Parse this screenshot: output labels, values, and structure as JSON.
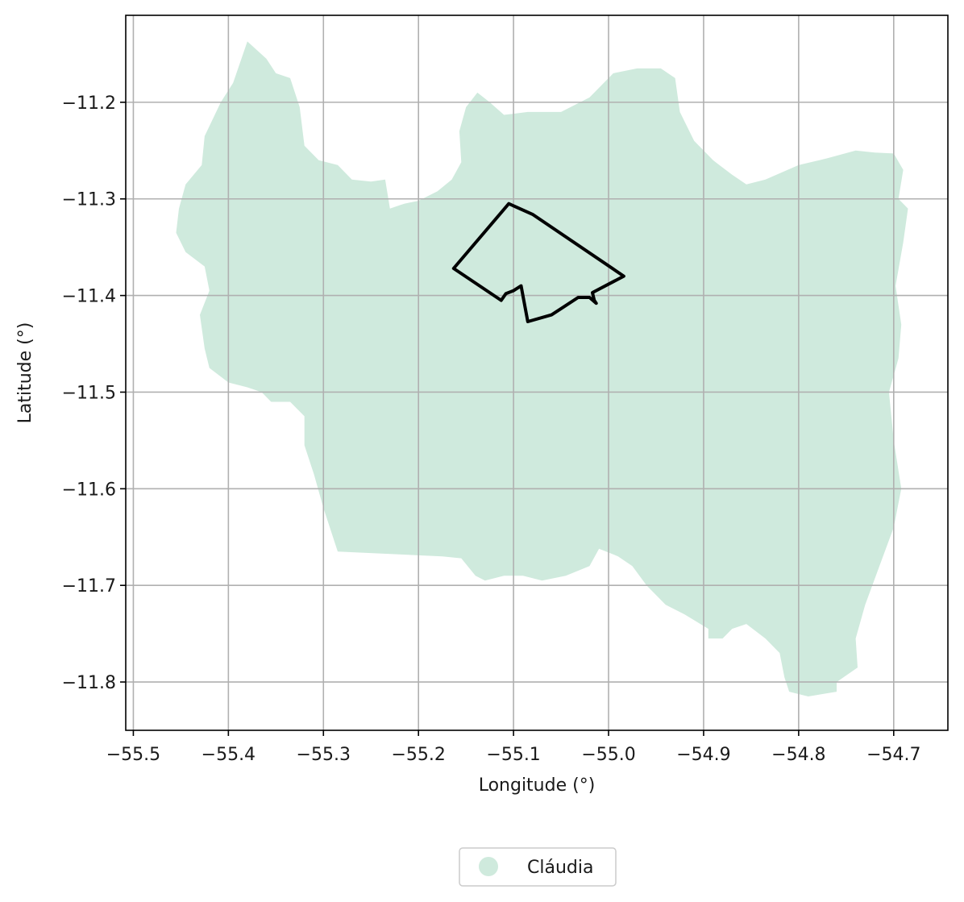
{
  "chart_data": {
    "type": "map",
    "xlabel": "Longitude (°)",
    "ylabel": "Latitude (°)",
    "xlim": [
      -55.508,
      -54.643
    ],
    "ylim": [
      -11.85,
      -11.11
    ],
    "xticks": [
      -55.5,
      -55.4,
      -55.3,
      -55.2,
      -55.1,
      -55.0,
      -54.9,
      -54.8,
      -54.7
    ],
    "xtick_labels": [
      "−55.5",
      "−55.4",
      "−55.3",
      "−55.2",
      "−55.1",
      "−55.0",
      "−54.9",
      "−54.8",
      "−54.7"
    ],
    "yticks": [
      -11.2,
      -11.3,
      -11.4,
      -11.5,
      -11.6,
      -11.7,
      -11.8
    ],
    "ytick_labels": [
      "−11.2",
      "−11.3",
      "−11.4",
      "−11.5",
      "−11.6",
      "−11.7",
      "−11.8"
    ],
    "grid": true,
    "legend_position": "bottom-center",
    "legend": [
      {
        "label": "Cláudia",
        "color": "#cfeadd"
      }
    ],
    "region": {
      "name": "Cláudia",
      "color": "#cfeadd",
      "boundary": [
        [
          -55.38,
          -11.137
        ],
        [
          -55.36,
          -11.155
        ],
        [
          -55.35,
          -11.17
        ],
        [
          -55.335,
          -11.175
        ],
        [
          -55.325,
          -11.205
        ],
        [
          -55.32,
          -11.245
        ],
        [
          -55.305,
          -11.26
        ],
        [
          -55.285,
          -11.265
        ],
        [
          -55.27,
          -11.28
        ],
        [
          -55.25,
          -11.282
        ],
        [
          -55.235,
          -11.28
        ],
        [
          -55.23,
          -11.31
        ],
        [
          -55.215,
          -11.305
        ],
        [
          -55.2,
          -11.302
        ],
        [
          -55.18,
          -11.292
        ],
        [
          -55.165,
          -11.28
        ],
        [
          -55.155,
          -11.262
        ],
        [
          -55.157,
          -11.23
        ],
        [
          -55.15,
          -11.205
        ],
        [
          -55.138,
          -11.19
        ],
        [
          -55.125,
          -11.2
        ],
        [
          -55.11,
          -11.213
        ],
        [
          -55.085,
          -11.21
        ],
        [
          -55.05,
          -11.21
        ],
        [
          -55.02,
          -11.195
        ],
        [
          -54.995,
          -11.17
        ],
        [
          -54.97,
          -11.165
        ],
        [
          -54.945,
          -11.165
        ],
        [
          -54.93,
          -11.175
        ],
        [
          -54.925,
          -11.21
        ],
        [
          -54.91,
          -11.24
        ],
        [
          -54.89,
          -11.26
        ],
        [
          -54.87,
          -11.275
        ],
        [
          -54.855,
          -11.285
        ],
        [
          -54.835,
          -11.28
        ],
        [
          -54.8,
          -11.265
        ],
        [
          -54.77,
          -11.258
        ],
        [
          -54.74,
          -11.25
        ],
        [
          -54.72,
          -11.252
        ],
        [
          -54.7,
          -11.253
        ],
        [
          -54.69,
          -11.27
        ],
        [
          -54.695,
          -11.3
        ],
        [
          -54.685,
          -11.31
        ],
        [
          -54.69,
          -11.345
        ],
        [
          -54.698,
          -11.39
        ],
        [
          -54.692,
          -11.43
        ],
        [
          -54.695,
          -11.465
        ],
        [
          -54.705,
          -11.5
        ],
        [
          -54.7,
          -11.55
        ],
        [
          -54.692,
          -11.6
        ],
        [
          -54.7,
          -11.64
        ],
        [
          -54.715,
          -11.68
        ],
        [
          -54.73,
          -11.72
        ],
        [
          -54.74,
          -11.755
        ],
        [
          -54.738,
          -11.785
        ],
        [
          -54.76,
          -11.8
        ],
        [
          -54.76,
          -11.81
        ],
        [
          -54.79,
          -11.815
        ],
        [
          -54.81,
          -11.81
        ],
        [
          -54.815,
          -11.795
        ],
        [
          -54.82,
          -11.77
        ],
        [
          -54.835,
          -11.755
        ],
        [
          -54.855,
          -11.74
        ],
        [
          -54.87,
          -11.745
        ],
        [
          -54.88,
          -11.755
        ],
        [
          -54.895,
          -11.755
        ],
        [
          -54.895,
          -11.745
        ],
        [
          -54.92,
          -11.73
        ],
        [
          -54.94,
          -11.72
        ],
        [
          -54.96,
          -11.7
        ],
        [
          -54.975,
          -11.68
        ],
        [
          -54.99,
          -11.67
        ],
        [
          -55.01,
          -11.662
        ],
        [
          -55.02,
          -11.68
        ],
        [
          -55.045,
          -11.69
        ],
        [
          -55.07,
          -11.695
        ],
        [
          -55.09,
          -11.69
        ],
        [
          -55.11,
          -11.69
        ],
        [
          -55.13,
          -11.695
        ],
        [
          -55.14,
          -11.69
        ],
        [
          -55.155,
          -11.672
        ],
        [
          -55.175,
          -11.67
        ],
        [
          -55.285,
          -11.665
        ],
        [
          -55.3,
          -11.62
        ],
        [
          -55.31,
          -11.585
        ],
        [
          -55.32,
          -11.555
        ],
        [
          -55.32,
          -11.525
        ],
        [
          -55.335,
          -11.51
        ],
        [
          -55.355,
          -11.51
        ],
        [
          -55.365,
          -11.5
        ],
        [
          -55.38,
          -11.495
        ],
        [
          -55.4,
          -11.49
        ],
        [
          -55.42,
          -11.475
        ],
        [
          -55.425,
          -11.455
        ],
        [
          -55.43,
          -11.42
        ],
        [
          -55.42,
          -11.395
        ],
        [
          -55.425,
          -11.37
        ],
        [
          -55.445,
          -11.355
        ],
        [
          -55.455,
          -11.335
        ],
        [
          -55.452,
          -11.31
        ],
        [
          -55.445,
          -11.285
        ],
        [
          -55.428,
          -11.265
        ],
        [
          -55.425,
          -11.235
        ],
        [
          -55.408,
          -11.2
        ],
        [
          -55.395,
          -11.18
        ]
      ]
    },
    "route": [
      [
        -55.105,
        -11.305
      ],
      [
        -55.08,
        -11.316
      ],
      [
        -54.984,
        -11.38
      ],
      [
        -55.017,
        -11.397
      ],
      [
        -55.015,
        -11.405
      ],
      [
        -55.013,
        -11.408
      ],
      [
        -55.02,
        -11.402
      ],
      [
        -55.032,
        -11.402
      ],
      [
        -55.06,
        -11.42
      ],
      [
        -55.085,
        -11.427
      ],
      [
        -55.092,
        -11.39
      ],
      [
        -55.1,
        -11.395
      ],
      [
        -55.108,
        -11.398
      ],
      [
        -55.113,
        -11.405
      ],
      [
        -55.163,
        -11.372
      ],
      [
        -55.105,
        -11.305
      ]
    ]
  }
}
